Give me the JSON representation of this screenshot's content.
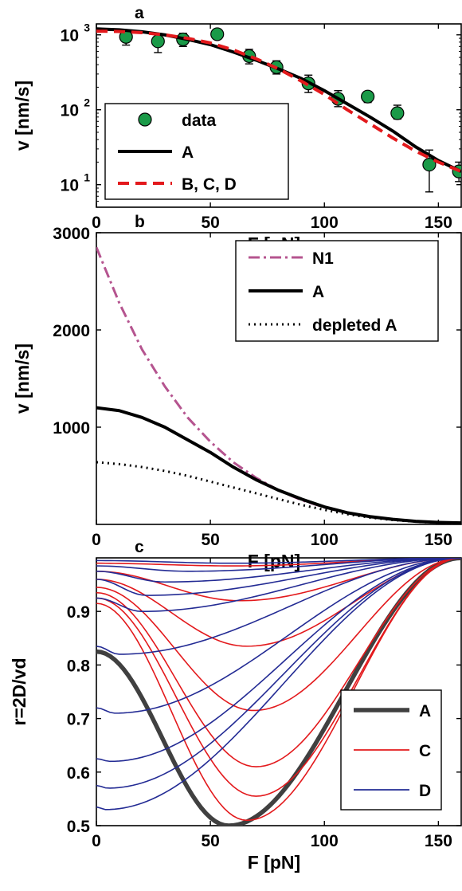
{
  "figure": {
    "panels": [
      {
        "letter": "a",
        "xlabel": "F [pN]",
        "ylabel": "v [nm/s]"
      },
      {
        "letter": "b",
        "xlabel": "F [pN]",
        "ylabel": "v [nm/s]"
      },
      {
        "letter": "c",
        "xlabel": "F [pN]",
        "ylabel": "r=2D/vd"
      }
    ]
  },
  "chart_data": [
    {
      "type": "scatter",
      "panel": "a",
      "title": "a",
      "xlabel": "F [pN]",
      "ylabel": "v [nm/s]",
      "xlim": [
        0,
        160
      ],
      "ylim": [
        5,
        1400
      ],
      "yscale": "log",
      "xticks": [
        0,
        50,
        100,
        150
      ],
      "yticks": [
        {
          "value": 10,
          "label": "10",
          "exp": "1"
        },
        {
          "value": 100,
          "label": "10",
          "exp": "2"
        },
        {
          "value": 1000,
          "label": "10",
          "exp": "3"
        }
      ],
      "legend": {
        "position": "bottom-left",
        "entries": [
          "data",
          "A",
          "B, C, D"
        ]
      },
      "series": [
        {
          "name": "data",
          "style": "markers",
          "color": "#1a9a48",
          "x": [
            13,
            27,
            38,
            53,
            67,
            79,
            93,
            106,
            119,
            132,
            146,
            159
          ],
          "y": [
            940,
            820,
            870,
            1020,
            520,
            370,
            225,
            140,
            150,
            90,
            18.5,
            15
          ],
          "err_low": [
            730,
            580,
            700,
            880,
            410,
            300,
            170,
            110,
            125,
            75,
            8,
            11
          ],
          "err_high": [
            1150,
            1050,
            1050,
            1150,
            640,
            450,
            290,
            180,
            175,
            115,
            29,
            20
          ]
        },
        {
          "name": "A",
          "style": "solid",
          "color": "#000000",
          "x": [
            0,
            10,
            20,
            30,
            40,
            50,
            60,
            70,
            80,
            90,
            100,
            110,
            120,
            130,
            140,
            150,
            160
          ],
          "y": [
            1200,
            1170,
            1100,
            1000,
            870,
            740,
            590,
            460,
            350,
            260,
            180,
            120,
            80,
            52,
            32,
            21,
            15
          ]
        },
        {
          "name": "B, C, D",
          "style": "dashed",
          "color": "#e3191c",
          "x": [
            0,
            10,
            20,
            30,
            40,
            50,
            60,
            70,
            80,
            90,
            100,
            110,
            120,
            130,
            140,
            150,
            160
          ],
          "y": [
            1120,
            1110,
            1070,
            1000,
            900,
            780,
            630,
            480,
            350,
            240,
            160,
            100,
            65,
            42,
            28,
            20,
            15
          ]
        }
      ]
    },
    {
      "type": "line",
      "panel": "b",
      "title": "b",
      "xlabel": "F [pN]",
      "ylabel": "v [nm/s]",
      "xlim": [
        0,
        160
      ],
      "ylim": [
        0,
        3000
      ],
      "xticks": [
        0,
        50,
        100,
        150
      ],
      "yticks": [
        1000,
        2000,
        3000
      ],
      "legend": {
        "position": "top-right",
        "entries": [
          "N1",
          "A",
          "depleted A"
        ]
      },
      "series": [
        {
          "name": "N1",
          "style": "dashdot",
          "color": "#b5548f",
          "x": [
            0,
            10,
            20,
            30,
            40,
            50,
            60,
            70,
            80,
            90,
            100,
            110,
            120,
            130,
            140,
            150,
            160
          ],
          "y": [
            2850,
            2280,
            1800,
            1420,
            1100,
            850,
            640,
            480,
            350,
            250,
            175,
            120,
            80,
            50,
            30,
            18,
            10
          ]
        },
        {
          "name": "A",
          "style": "solid",
          "color": "#000000",
          "x": [
            0,
            10,
            20,
            30,
            40,
            50,
            60,
            70,
            80,
            90,
            100,
            110,
            120,
            130,
            140,
            150,
            160
          ],
          "y": [
            1200,
            1170,
            1100,
            1000,
            870,
            740,
            590,
            460,
            350,
            260,
            180,
            120,
            80,
            52,
            32,
            21,
            15
          ]
        },
        {
          "name": "depleted A",
          "style": "dotted",
          "color": "#000000",
          "x": [
            0,
            10,
            20,
            30,
            40,
            50,
            60,
            70,
            80,
            90,
            100,
            110,
            120,
            130,
            140,
            150,
            160
          ],
          "y": [
            640,
            620,
            590,
            550,
            500,
            440,
            380,
            320,
            260,
            200,
            150,
            105,
            70,
            45,
            28,
            17,
            10
          ]
        }
      ]
    },
    {
      "type": "line",
      "panel": "c",
      "title": "c",
      "xlabel": "F [pN]",
      "ylabel": "r=2D/vd",
      "xlim": [
        0,
        160
      ],
      "ylim": [
        0.5,
        1.0
      ],
      "xticks": [
        0,
        50,
        100,
        150
      ],
      "yticks": [
        0.5,
        0.6,
        0.7,
        0.8,
        0.9
      ],
      "legend": {
        "position": "bottom-right",
        "entries": [
          "A",
          "C",
          "D"
        ]
      },
      "series": [
        {
          "name": "A",
          "style": "solid-thick",
          "color": "#404040",
          "r0": 0.825,
          "min": 0.5,
          "fmin": 58,
          "w": 40,
          "fall": 0.055
        },
        {
          "name": "C",
          "style": "solid",
          "color": "#e3191c",
          "curves": [
            {
              "r0": 0.99,
              "min": 0.985,
              "fmin": 60,
              "w": 30,
              "fall": 0.02
            },
            {
              "r0": 0.975,
              "min": 0.92,
              "fmin": 63,
              "w": 30,
              "fall": 0.03
            },
            {
              "r0": 0.96,
              "min": 0.835,
              "fmin": 66,
              "w": 30,
              "fall": 0.035
            },
            {
              "r0": 0.945,
              "min": 0.715,
              "fmin": 69,
              "w": 30,
              "fall": 0.04
            },
            {
              "r0": 0.935,
              "min": 0.61,
              "fmin": 70,
              "w": 30,
              "fall": 0.045
            },
            {
              "r0": 0.925,
              "min": 0.555,
              "fmin": 70,
              "w": 30,
              "fall": 0.05
            },
            {
              "r0": 0.915,
              "min": 0.51,
              "fmin": 66,
              "w": 30,
              "fall": 0.055
            }
          ]
        },
        {
          "name": "D",
          "style": "solid",
          "color": "#232b94",
          "curves": [
            {
              "r0": 0.995,
              "min": 0.99,
              "fmin": 60,
              "w": 25,
              "fall": 0.015
            },
            {
              "r0": 0.985,
              "min": 0.975,
              "fmin": 40,
              "w": 25,
              "fall": 0.02
            },
            {
              "r0": 0.975,
              "min": 0.955,
              "fmin": 30,
              "w": 25,
              "fall": 0.025
            },
            {
              "r0": 0.96,
              "min": 0.93,
              "fmin": 22,
              "w": 25,
              "fall": 0.03
            },
            {
              "r0": 0.925,
              "min": 0.9,
              "fmin": 20,
              "w": 25,
              "fall": 0.035
            },
            {
              "r0": 0.835,
              "min": 0.82,
              "fmin": 10,
              "w": 25,
              "fall": 0.04
            },
            {
              "r0": 0.72,
              "min": 0.71,
              "fmin": 8,
              "w": 25,
              "fall": 0.045
            },
            {
              "r0": 0.625,
              "min": 0.62,
              "fmin": 6,
              "w": 25,
              "fall": 0.05
            },
            {
              "r0": 0.575,
              "min": 0.57,
              "fmin": 5,
              "w": 25,
              "fall": 0.05
            },
            {
              "r0": 0.535,
              "min": 0.53,
              "fmin": 4,
              "w": 25,
              "fall": 0.055
            }
          ]
        }
      ]
    }
  ]
}
